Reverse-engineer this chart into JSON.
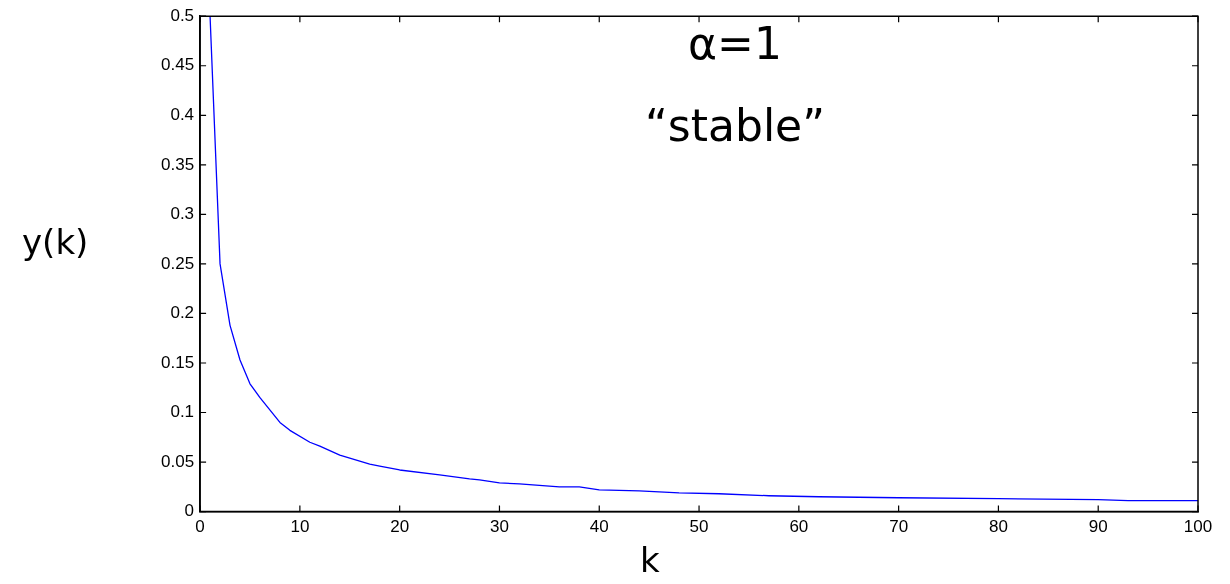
{
  "chart_data": {
    "type": "line",
    "xlabel": "k",
    "ylabel": "y(k)",
    "annotations": [
      "α=1",
      "“stable”"
    ],
    "series": [
      {
        "color": "#0000ff",
        "x": [
          1,
          2,
          3,
          4,
          5,
          6,
          8,
          9,
          11,
          12,
          14,
          17,
          18,
          20,
          24,
          27,
          28,
          30,
          32,
          36,
          38,
          40,
          44,
          48,
          52,
          57,
          62,
          70,
          80,
          90,
          93,
          100
        ],
        "values": [
          0.5,
          0.25,
          0.188,
          0.153,
          0.129,
          0.115,
          0.09,
          0.082,
          0.07,
          0.066,
          0.057,
          0.048,
          0.046,
          0.042,
          0.037,
          0.033,
          0.032,
          0.029,
          0.028,
          0.025,
          0.025,
          0.022,
          0.021,
          0.019,
          0.018,
          0.016,
          0.015,
          0.014,
          0.013,
          0.012,
          0.011,
          0.011
        ]
      }
    ],
    "xlim": [
      0,
      100
    ],
    "xticks": [
      0,
      10,
      20,
      30,
      40,
      50,
      60,
      70,
      80,
      90,
      100
    ],
    "ylim": [
      0,
      0.5
    ],
    "yticks": [
      0,
      0.05,
      0.1,
      0.15,
      0.2,
      0.25,
      0.3,
      0.35,
      0.4,
      0.45,
      0.5
    ],
    "grid": false,
    "legend": false,
    "marker": "none",
    "line_style": "solid"
  }
}
